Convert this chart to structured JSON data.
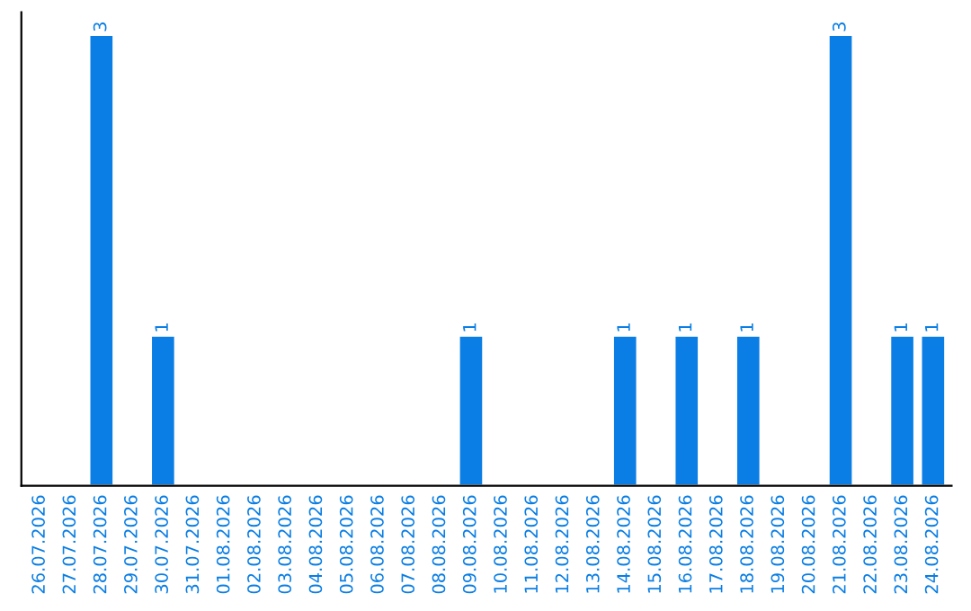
{
  "chart_data": {
    "type": "bar",
    "categories": [
      "26.07.2026",
      "27.07.2026",
      "28.07.2026",
      "29.07.2026",
      "30.07.2026",
      "31.07.2026",
      "01.08.2026",
      "02.08.2026",
      "03.08.2026",
      "04.08.2026",
      "05.08.2026",
      "06.08.2026",
      "07.08.2026",
      "08.08.2026",
      "09.08.2026",
      "10.08.2026",
      "11.08.2026",
      "12.08.2026",
      "13.08.2026",
      "14.08.2026",
      "15.08.2026",
      "16.08.2026",
      "17.08.2026",
      "18.08.2026",
      "19.08.2026",
      "20.08.2026",
      "21.08.2026",
      "22.08.2026",
      "23.08.2026",
      "24.08.2026"
    ],
    "values": [
      null,
      null,
      3,
      null,
      1,
      null,
      null,
      null,
      null,
      null,
      null,
      null,
      null,
      null,
      1,
      null,
      null,
      null,
      null,
      1,
      null,
      1,
      null,
      1,
      null,
      null,
      3,
      null,
      1,
      1
    ],
    "value_labels": [
      null,
      null,
      "3",
      null,
      "1",
      null,
      null,
      null,
      null,
      null,
      null,
      null,
      null,
      null,
      "1",
      null,
      null,
      null,
      null,
      "1",
      null,
      "1",
      null,
      "1",
      null,
      null,
      "3",
      null,
      "1",
      "1"
    ],
    "color": "#0a7ee4",
    "tick_labels": "x",
    "grid": false,
    "legend": false
  }
}
